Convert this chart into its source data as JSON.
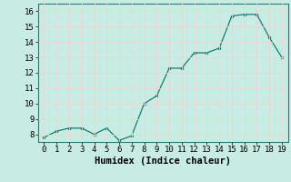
{
  "x": [
    0,
    1,
    2,
    3,
    4,
    5,
    6,
    7,
    8,
    9,
    10,
    11,
    12,
    13,
    14,
    15,
    16,
    17,
    18,
    19
  ],
  "y": [
    7.8,
    8.2,
    8.4,
    8.4,
    8.0,
    8.4,
    7.6,
    7.9,
    10.0,
    10.5,
    12.3,
    12.3,
    13.3,
    13.3,
    13.6,
    15.7,
    15.8,
    15.8,
    14.3,
    13.0
  ],
  "line_color": "#1a7a6e",
  "marker_color": "#1a7a6e",
  "bg_color": "#c8ece4",
  "grid_color": "#e8d8d0",
  "xlabel": "Humidex (Indice chaleur)",
  "ylim": [
    7.5,
    16.5
  ],
  "xlim": [
    -0.5,
    19.5
  ],
  "yticks": [
    8,
    9,
    10,
    11,
    12,
    13,
    14,
    15,
    16
  ],
  "xticks": [
    0,
    1,
    2,
    3,
    4,
    5,
    6,
    7,
    8,
    9,
    10,
    11,
    12,
    13,
    14,
    15,
    16,
    17,
    18,
    19
  ],
  "xlabel_fontsize": 7.5,
  "tick_fontsize": 6.5
}
